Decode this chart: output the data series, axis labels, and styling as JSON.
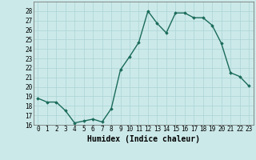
{
  "x": [
    0,
    1,
    2,
    3,
    4,
    5,
    6,
    7,
    8,
    9,
    10,
    11,
    12,
    13,
    14,
    15,
    16,
    17,
    18,
    19,
    20,
    21,
    22,
    23
  ],
  "y": [
    18.8,
    18.4,
    18.4,
    17.5,
    16.2,
    16.4,
    16.6,
    16.3,
    17.7,
    21.8,
    23.2,
    24.7,
    28.0,
    26.7,
    25.7,
    27.8,
    27.8,
    27.3,
    27.3,
    26.5,
    24.6,
    21.5,
    21.1,
    20.1
  ],
  "line_color": "#1a6b5a",
  "marker": "D",
  "marker_size": 1.8,
  "bg_color": "#cce9e9",
  "grid_color": "#aad4d4",
  "xlabel": "Humidex (Indice chaleur)",
  "ylim": [
    16,
    29
  ],
  "xlim": [
    -0.5,
    23.5
  ],
  "yticks": [
    16,
    17,
    18,
    19,
    20,
    21,
    22,
    23,
    24,
    25,
    26,
    27,
    28
  ],
  "xticks": [
    0,
    1,
    2,
    3,
    4,
    5,
    6,
    7,
    8,
    9,
    10,
    11,
    12,
    13,
    14,
    15,
    16,
    17,
    18,
    19,
    20,
    21,
    22,
    23
  ],
  "xtick_labels": [
    "0",
    "1",
    "2",
    "3",
    "4",
    "5",
    "6",
    "7",
    "8",
    "9",
    "10",
    "11",
    "12",
    "13",
    "14",
    "15",
    "16",
    "17",
    "18",
    "19",
    "20",
    "21",
    "22",
    "23"
  ],
  "linewidth": 1.0,
  "tick_fontsize": 5.5,
  "xlabel_fontsize": 7.0
}
